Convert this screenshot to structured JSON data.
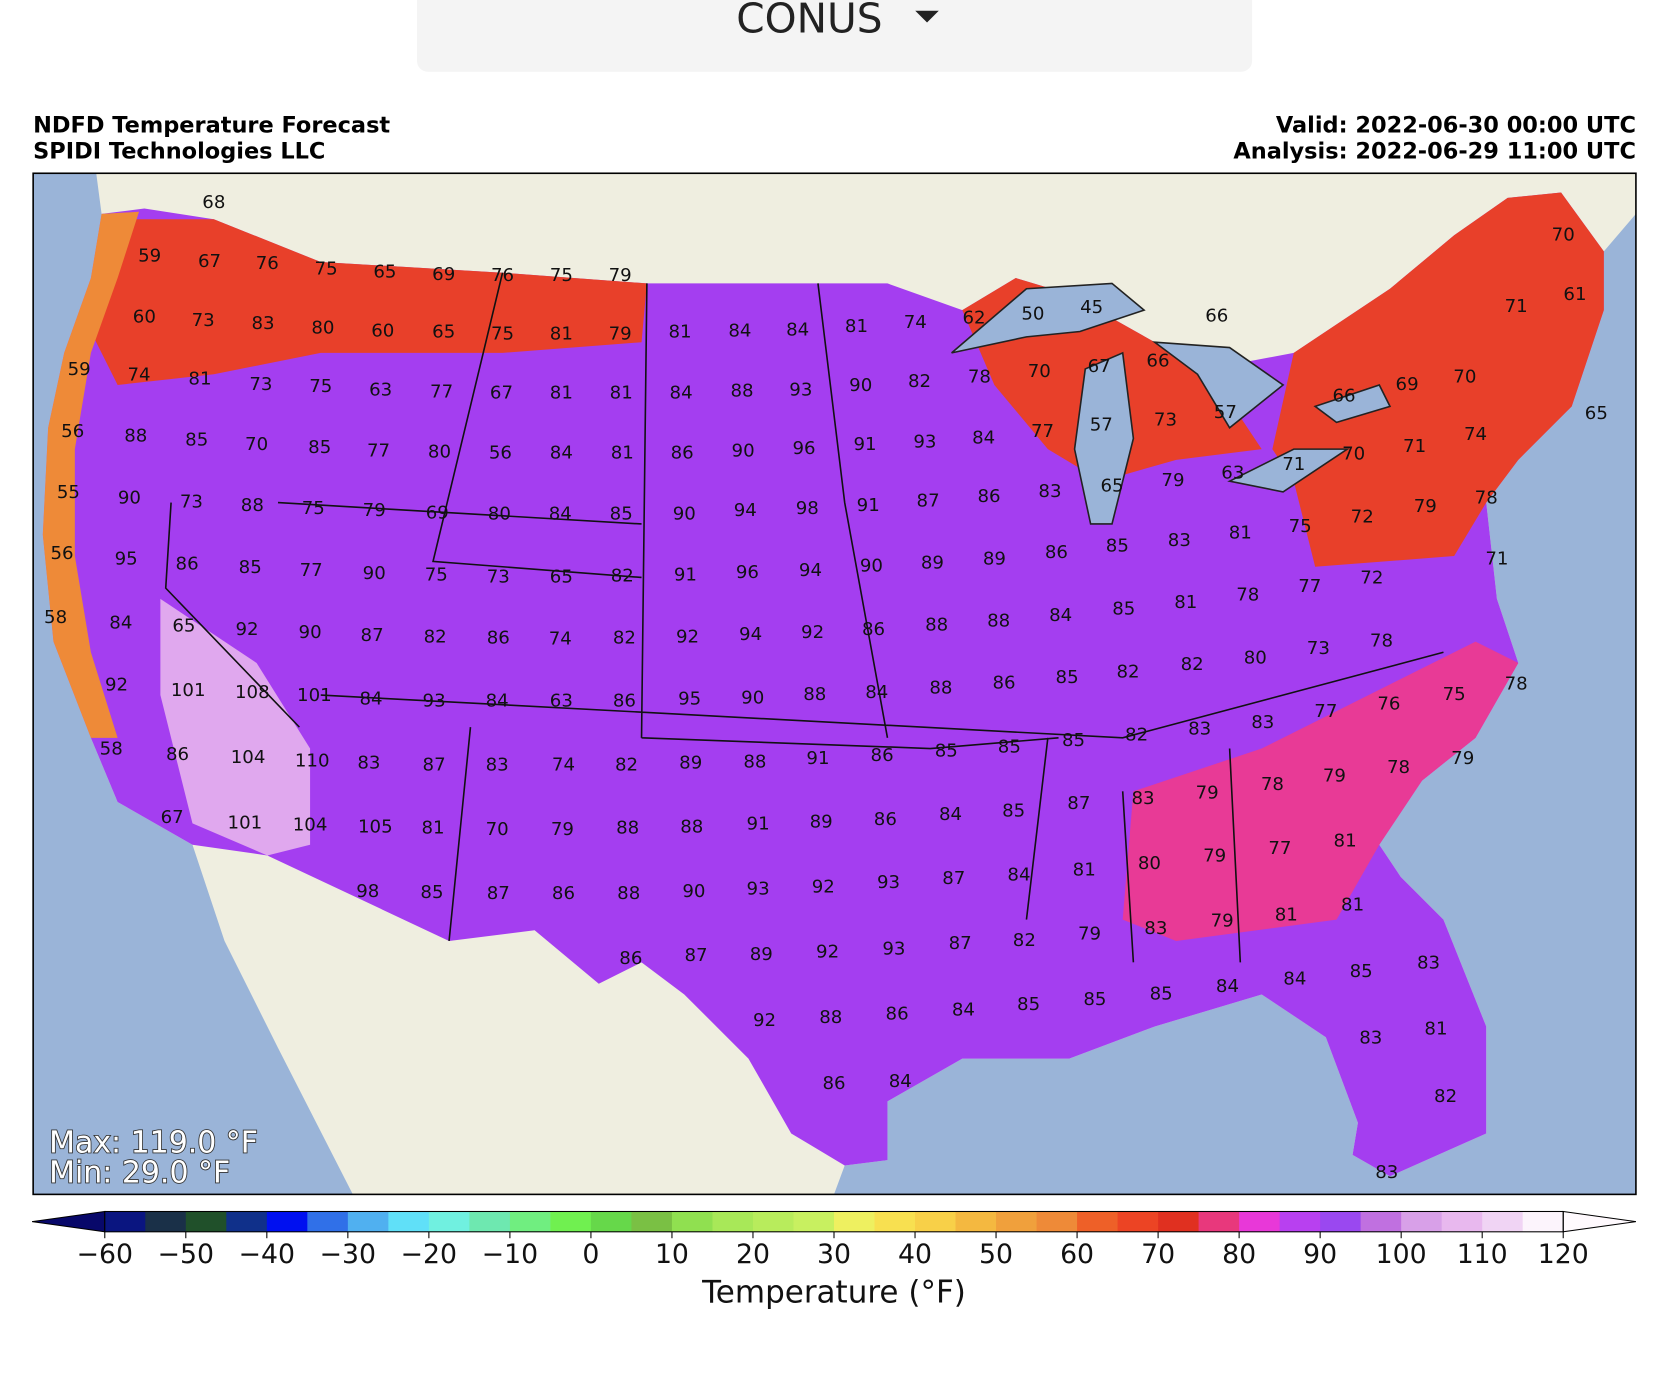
{
  "dropdown": {
    "label": "CONUS"
  },
  "header": {
    "title": "NDFD Temperature Forecast",
    "source": "SPIDI Technologies LLC",
    "valid": "Valid: 2022-06-30 00:00 UTC",
    "analysis": "Analysis: 2022-06-29 11:00 UTC"
  },
  "map": {
    "temperatures": [
      68,
      59,
      67,
      76,
      75,
      65,
      69,
      76,
      75,
      79,
      60,
      73,
      83,
      80,
      60,
      65,
      75,
      81,
      79,
      81,
      84,
      84,
      81,
      74,
      62,
      50,
      45,
      66,
      71,
      70,
      61,
      59,
      74,
      81,
      73,
      75,
      63,
      77,
      67,
      81,
      81,
      84,
      88,
      93,
      90,
      82,
      78,
      70,
      67,
      66,
      69,
      70,
      66,
      57,
      65,
      56,
      88,
      85,
      70,
      85,
      77,
      80,
      56,
      84,
      81,
      86,
      90,
      96,
      91,
      93,
      84,
      77,
      57,
      73,
      74,
      70,
      71,
      55,
      90,
      73,
      88,
      75,
      79,
      69,
      80,
      84,
      85,
      90,
      94,
      98,
      91,
      87,
      86,
      83,
      65,
      79,
      63,
      71,
      78,
      56,
      95,
      86,
      85,
      77,
      90,
      75,
      73,
      65,
      82,
      91,
      96,
      94,
      90,
      89,
      89,
      86,
      85,
      83,
      81,
      75,
      72,
      79,
      71,
      58,
      84,
      65,
      92,
      90,
      87,
      82,
      86,
      74,
      82,
      92,
      94,
      92,
      86,
      88,
      88,
      84,
      85,
      81,
      78,
      77,
      72,
      92,
      101,
      108,
      101,
      84,
      93,
      84,
      63,
      86,
      95,
      90,
      88,
      84,
      88,
      86,
      85,
      82,
      82,
      80,
      73,
      78,
      76,
      77,
      78,
      75,
      58,
      86,
      104,
      110,
      83,
      87,
      83,
      74,
      82,
      89,
      88,
      91,
      86,
      85,
      85,
      85,
      82,
      83,
      83,
      79,
      78,
      79,
      78,
      67,
      101,
      104,
      105,
      81,
      70,
      79,
      88,
      88,
      91,
      89,
      86,
      84,
      85,
      87,
      83,
      79,
      77,
      81,
      79,
      98,
      85,
      87,
      86,
      88,
      90,
      93,
      92,
      93,
      87,
      84,
      81,
      80,
      81,
      81,
      86,
      87,
      89,
      92,
      93,
      87,
      82,
      79,
      83,
      79,
      92,
      88,
      86,
      84,
      85,
      85,
      85,
      84,
      84,
      85,
      83,
      86,
      84,
      83,
      81,
      82,
      83
    ]
  },
  "stats": {
    "max": "Max: 119.0 °F",
    "min": "Min: 29.0 °F"
  },
  "colorbar": {
    "label": "Temperature (°F)",
    "range": [
      -60,
      120
    ],
    "ticks": [
      {
        "value": -60,
        "label": "−60"
      },
      {
        "value": -50,
        "label": "−50"
      },
      {
        "value": -40,
        "label": "−40"
      },
      {
        "value": -30,
        "label": "−30"
      },
      {
        "value": -20,
        "label": "−20"
      },
      {
        "value": -10,
        "label": "−10"
      },
      0,
      10,
      20,
      30,
      40,
      50,
      60,
      70,
      80,
      90,
      100,
      110,
      120
    ],
    "colors": [
      "#0a1580",
      "#1a3048",
      "#20502a",
      "#10308a",
      "#0010f0",
      "#3070e8",
      "#50b0f0",
      "#60e0f8",
      "#70f0e0",
      "#6ee8b0",
      "#70ee80",
      "#70f050",
      "#66d84a",
      "#7ac044",
      "#90e050",
      "#a8e858",
      "#b8ec5c",
      "#c8f060",
      "#eef060",
      "#f8e050",
      "#f8d048",
      "#f4b840",
      "#f0a03c",
      "#ee8a38",
      "#ee6028",
      "#ec4424",
      "#e03020",
      "#e8387c",
      "#e838d8",
      "#b840f0",
      "#9a48f0",
      "#c070e0",
      "#d8a0e8",
      "#e8b8ee",
      "#f0d4f4",
      "#fcf4fc"
    ],
    "under_color": "#08086a",
    "over_color": "#fffafe"
  }
}
